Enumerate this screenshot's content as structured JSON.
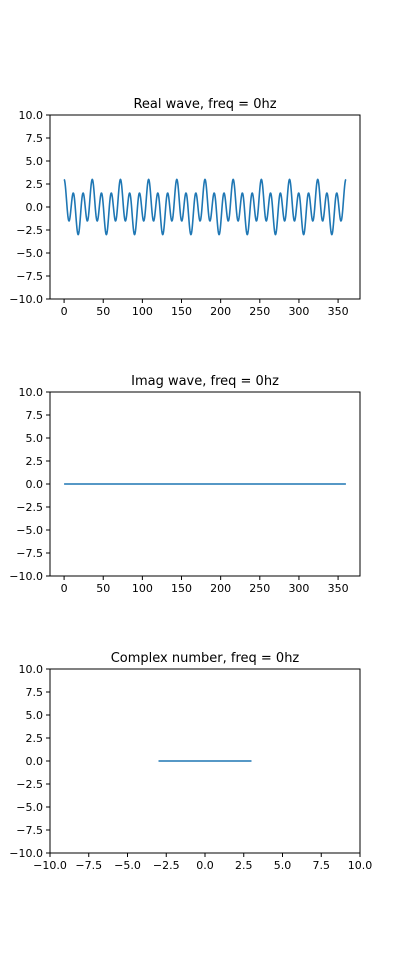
{
  "chart_data": [
    {
      "id": "real",
      "type": "line",
      "title": "Real wave, freq = 0hz",
      "xlim": [
        -18,
        378
      ],
      "ylim": [
        -10,
        10
      ],
      "xticks": [
        0,
        50,
        100,
        150,
        200,
        250,
        300,
        350
      ],
      "xtick_labels": [
        "0",
        "50",
        "100",
        "150",
        "200",
        "250",
        "300",
        "350"
      ],
      "yticks": [
        10,
        7.5,
        5,
        2.5,
        0,
        -2.5,
        -5,
        -7.5,
        -10
      ],
      "ytick_labels": [
        "10.0",
        "7.5",
        "5.0",
        "2.5",
        "0.0",
        "−2.5",
        "−5.0",
        "−7.5",
        "−10.0"
      ],
      "series": [
        {
          "color": "#1f77b4",
          "function": "cos(2*pi*x/36) + 2*cos(2*pi*x/12)",
          "x_range": [
            0,
            360
          ]
        }
      ]
    },
    {
      "id": "imag",
      "type": "line",
      "title": "Imag wave, freq = 0hz",
      "xlim": [
        -18,
        378
      ],
      "ylim": [
        -10,
        10
      ],
      "xticks": [
        0,
        50,
        100,
        150,
        200,
        250,
        300,
        350
      ],
      "xtick_labels": [
        "0",
        "50",
        "100",
        "150",
        "200",
        "250",
        "300",
        "350"
      ],
      "yticks": [
        10,
        7.5,
        5,
        2.5,
        0,
        -2.5,
        -5,
        -7.5,
        -10
      ],
      "ytick_labels": [
        "10.0",
        "7.5",
        "5.0",
        "2.5",
        "0.0",
        "−2.5",
        "−5.0",
        "−7.5",
        "−10.0"
      ],
      "series": [
        {
          "color": "#1f77b4",
          "x": [
            0,
            360
          ],
          "y": [
            0,
            0
          ]
        }
      ]
    },
    {
      "id": "complex",
      "type": "line",
      "title": "Complex number, freq = 0hz",
      "xlim": [
        -10,
        10
      ],
      "ylim": [
        -10,
        10
      ],
      "xticks": [
        -10,
        -7.5,
        -5,
        -2.5,
        0,
        2.5,
        5,
        7.5,
        10
      ],
      "xtick_labels": [
        "−10.0",
        "−7.5",
        "−5.0",
        "−2.5",
        "0.0",
        "2.5",
        "5.0",
        "7.5",
        "10.0"
      ],
      "yticks": [
        10,
        7.5,
        5,
        2.5,
        0,
        -2.5,
        -5,
        -7.5,
        -10
      ],
      "ytick_labels": [
        "10.0",
        "7.5",
        "5.0",
        "2.5",
        "0.0",
        "−2.5",
        "−5.0",
        "−7.5",
        "−10.0"
      ],
      "series": [
        {
          "color": "#1f77b4",
          "x": [
            -3,
            3
          ],
          "y": [
            0,
            0
          ]
        }
      ]
    }
  ]
}
